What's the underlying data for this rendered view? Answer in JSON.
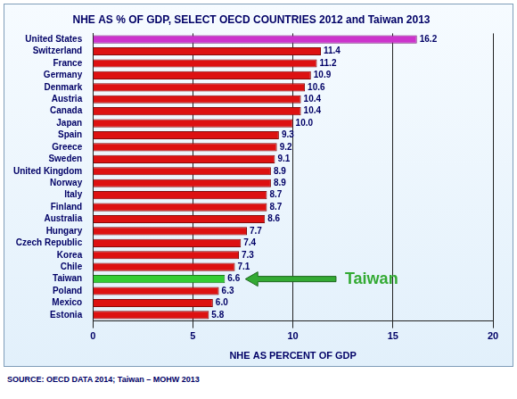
{
  "chart_data": {
    "type": "bar",
    "orientation": "horizontal",
    "title": "NHE AS % OF GDP, SELECT OECD COUNTRIES 2012 and Taiwan 2013",
    "x_label": "NHE AS PERCENT OF GDP",
    "source": "SOURCE: OECD DATA 2014; Taiwan – MOHW 2013",
    "categories": [
      "United States",
      "Switzerland",
      "France",
      "Germany",
      "Denmark",
      "Austria",
      "Canada",
      "Japan",
      "Spain",
      "Greece",
      "Sweden",
      "United Kingdom",
      "Norway",
      "Italy",
      "Finland",
      "Australia",
      "Hungary",
      "Czech Republic",
      "Korea",
      "Chile",
      "Taiwan",
      "Poland",
      "Mexico",
      "Estonia"
    ],
    "values": [
      16.2,
      11.4,
      11.2,
      10.9,
      10.6,
      10.4,
      10.4,
      10.0,
      9.3,
      9.2,
      9.1,
      8.9,
      8.9,
      8.7,
      8.7,
      8.6,
      7.7,
      7.4,
      7.3,
      7.1,
      6.6,
      6.3,
      6.0,
      5.8
    ],
    "value_labels": [
      "16.2",
      "11.4",
      "11.2",
      "10.9",
      "10.6",
      "10.4",
      "10.4",
      "10.0",
      "9.3",
      "9.2",
      "9.1",
      "8.9",
      "8.9",
      "8.7",
      "8.7",
      "8.6",
      "7.7",
      "7.4",
      "7.3",
      "7.1",
      "6.6",
      "6.3",
      "6.0",
      "5.8"
    ],
    "colors": [
      "#cc33cc",
      "#dd1111",
      "#dd1111",
      "#dd1111",
      "#dd1111",
      "#dd1111",
      "#dd1111",
      "#dd1111",
      "#dd1111",
      "#dd1111",
      "#dd1111",
      "#dd1111",
      "#dd1111",
      "#dd1111",
      "#dd1111",
      "#dd1111",
      "#dd1111",
      "#dd1111",
      "#dd1111",
      "#dd1111",
      "#33cc33",
      "#dd1111",
      "#dd1111",
      "#dd1111"
    ],
    "xlim": [
      0,
      20
    ],
    "xticks": [
      0,
      5,
      10,
      15,
      20
    ],
    "grid": true,
    "data_labels": true,
    "annotations": [
      {
        "text": "Taiwan",
        "category": "Taiwan",
        "color": "#33aa33"
      }
    ]
  }
}
